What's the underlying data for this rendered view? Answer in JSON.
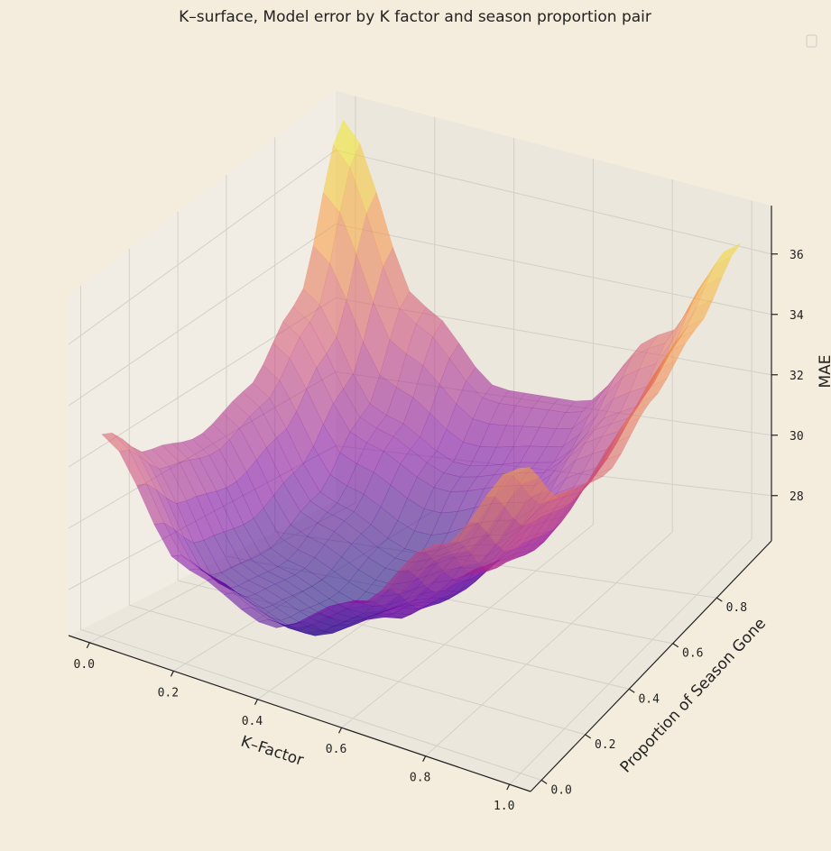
{
  "chart_data": {
    "type": "surface",
    "title": "K–surface, Model error by K factor and season proportion pair",
    "xlabel": "K–Factor",
    "ylabel": "Proportion of Season Gone",
    "zlabel": "MAE",
    "x": [
      0.0,
      0.2,
      0.4,
      0.6,
      0.8,
      1.0
    ],
    "y": [
      0.0,
      0.2,
      0.4,
      0.6,
      0.8,
      1.0
    ],
    "z": [
      [
        33.0,
        29.5,
        28.5,
        30.0,
        32.5,
        35.5
      ],
      [
        31.5,
        28.0,
        27.3,
        28.5,
        30.5,
        33.5
      ],
      [
        31.0,
        27.8,
        27.0,
        28.0,
        30.0,
        33.0
      ],
      [
        31.5,
        28.5,
        27.5,
        28.5,
        30.5,
        34.0
      ],
      [
        33.0,
        30.0,
        29.0,
        29.5,
        31.5,
        35.0
      ],
      [
        37.2,
        32.5,
        30.5,
        30.5,
        33.0,
        36.5
      ]
    ],
    "xlim": [
      -0.05,
      1.05
    ],
    "ylim": [
      -0.05,
      1.05
    ],
    "zlim": [
      26.5,
      37.6
    ],
    "xticks": [
      "0.0",
      "0.2",
      "0.4",
      "0.6",
      "0.8",
      "1.0"
    ],
    "yticks": [
      "0.0",
      "0.2",
      "0.4",
      "0.6",
      "0.8"
    ],
    "zticks": [
      "28",
      "30",
      "32",
      "34",
      "36"
    ],
    "colormap": "plasma",
    "alpha": 0.55,
    "legend": "top-right",
    "grid": true
  },
  "colors": {
    "background": "#f4ecdc",
    "pane": "#eeeae0",
    "grid": "#d2d0ca",
    "axis": "#222222"
  }
}
